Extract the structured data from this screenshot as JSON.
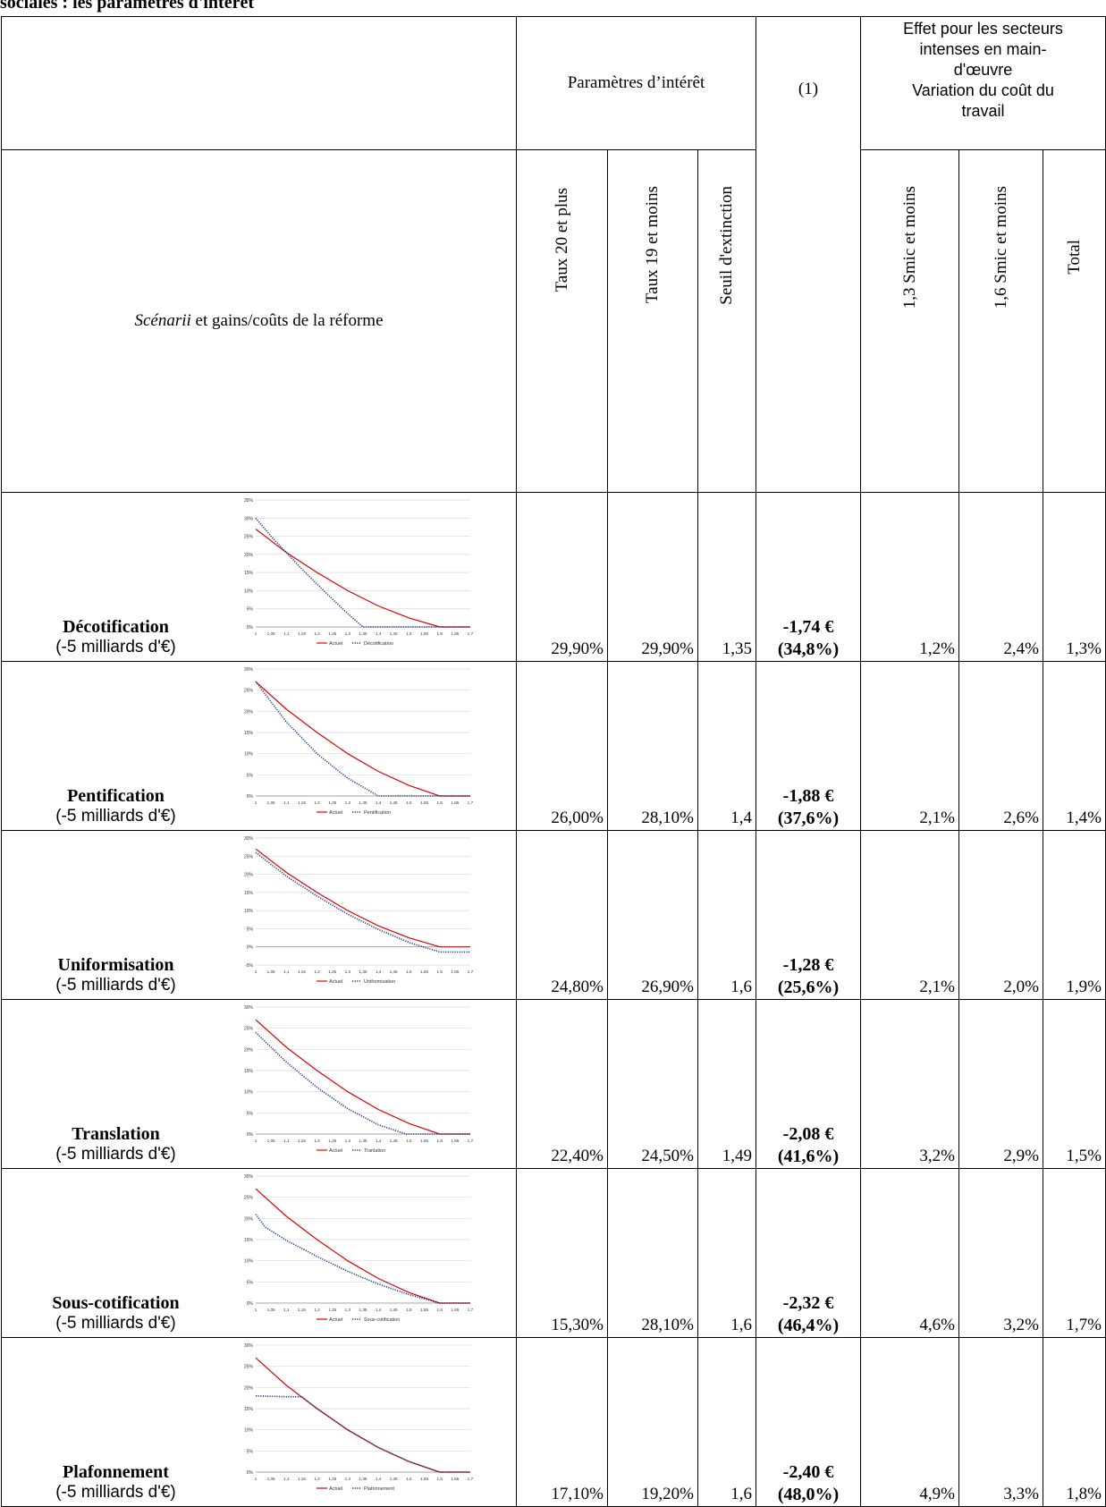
{
  "title": "sociales : les paramètres d'intérêt",
  "header": {
    "params_title": "Paramètres d’intérêt",
    "effect_title": [
      "Effet pour les secteurs",
      "intenses en main-",
      "d'œuvre",
      "Variation du coût du",
      "travail"
    ],
    "scenarii_italic": "Scénarii",
    "scenarii_rest": " et gains/coûts de la réforme",
    "col_taux20": "Taux 20 et plus",
    "col_taux19": "Taux 19 et moins",
    "col_seuil": "Seuil d'extinction",
    "col_note": "(1)",
    "col_13": "1,3 Smic et moins",
    "col_16": "1,6 Smic et moins",
    "col_total": "Total"
  },
  "x_ticks": [
    "1",
    "1,05",
    "1,1",
    "1,15",
    "1,2",
    "1,25",
    "1,3",
    "1,35",
    "1,4",
    "1,45",
    "1,5",
    "1,55",
    "1,6",
    "1,65",
    "1,7"
  ],
  "colors": {
    "actuel": "#e00000",
    "scenario": "#1f3a93",
    "grid": "#d9d9d9"
  },
  "scenarios": [
    {
      "name": "Décotification",
      "budget": "(-5 milliards d'€)",
      "taux20": "29,90%",
      "taux19": "29,90%",
      "seuil": "1,35",
      "gain": "-1,74 €",
      "gain_pct": "(34,8%)",
      "e13": "1,2%",
      "e16": "2,4%",
      "total": "1,3%",
      "chart_data": {
        "type": "line",
        "y_ticks": [
          "0%",
          "5%",
          "10%",
          "15%",
          "20%",
          "25%",
          "30%",
          "35%"
        ],
        "ylim": [
          0,
          0.35
        ],
        "legend": [
          "Actuel",
          "Décotification"
        ],
        "series": [
          {
            "name": "Actuel",
            "style": "solid",
            "x": [
              1,
              1.1,
              1.2,
              1.3,
              1.4,
              1.5,
              1.6,
              1.7
            ],
            "y": [
              0.27,
              0.205,
              0.15,
              0.1,
              0.058,
              0.025,
              0,
              0
            ]
          },
          {
            "name": "Décotification",
            "style": "dotted",
            "x": [
              1,
              1.05,
              1.1,
              1.15,
              1.2,
              1.25,
              1.3,
              1.35,
              1.7
            ],
            "y": [
              0.3,
              0.25,
              0.205,
              0.16,
              0.118,
              0.077,
              0.037,
              0,
              0
            ]
          }
        ]
      }
    },
    {
      "name": "Pentification",
      "budget": "(-5 milliards d'€)",
      "taux20": "26,00%",
      "taux19": "28,10%",
      "seuil": "1,4",
      "gain": "-1,88 €",
      "gain_pct": "(37,6%)",
      "e13": "2,1%",
      "e16": "2,6%",
      "total": "1,4%",
      "chart_data": {
        "type": "line",
        "y_ticks": [
          "0%",
          "5%",
          "10%",
          "15%",
          "20%",
          "25%",
          "30%"
        ],
        "ylim": [
          0,
          0.3
        ],
        "legend": [
          "Actuel",
          "Pentification"
        ],
        "series": [
          {
            "name": "Actuel",
            "style": "solid",
            "x": [
              1,
              1.1,
              1.2,
              1.3,
              1.4,
              1.5,
              1.6,
              1.7
            ],
            "y": [
              0.27,
              0.205,
              0.15,
              0.1,
              0.058,
              0.025,
              0,
              0
            ]
          },
          {
            "name": "Pentification",
            "style": "dotted",
            "x": [
              1,
              1.1,
              1.2,
              1.3,
              1.4,
              1.7
            ],
            "y": [
              0.27,
              0.175,
              0.1,
              0.042,
              0,
              0
            ]
          }
        ]
      }
    },
    {
      "name": "Uniformisation",
      "budget": "(-5 milliards d'€)",
      "taux20": "24,80%",
      "taux19": "26,90%",
      "seuil": "1,6",
      "gain": "-1,28 €",
      "gain_pct": "(25,6%)",
      "e13": "2,1%",
      "e16": "2,0%",
      "total": "1,9%",
      "chart_data": {
        "type": "line",
        "y_ticks": [
          "-5%",
          "0%",
          "5%",
          "10%",
          "15%",
          "20%",
          "25%",
          "30%"
        ],
        "ylim": [
          -0.05,
          0.3
        ],
        "legend": [
          "Actuel",
          "Uniformisation"
        ],
        "series": [
          {
            "name": "Actuel",
            "style": "solid",
            "x": [
              1,
              1.1,
              1.2,
              1.3,
              1.4,
              1.5,
              1.6,
              1.7
            ],
            "y": [
              0.27,
              0.205,
              0.15,
              0.1,
              0.058,
              0.025,
              0,
              0
            ]
          },
          {
            "name": "Uniformisation",
            "style": "dotted",
            "x": [
              1,
              1.1,
              1.2,
              1.3,
              1.4,
              1.5,
              1.6,
              1.7
            ],
            "y": [
              0.26,
              0.195,
              0.14,
              0.09,
              0.048,
              0.012,
              -0.014,
              -0.014
            ]
          }
        ]
      }
    },
    {
      "name": "Translation",
      "budget": "(-5 milliards d'€)",
      "taux20": "22,40%",
      "taux19": "24,50%",
      "seuil": "1,49",
      "gain": "-2,08 €",
      "gain_pct": "(41,6%)",
      "e13": "3,2%",
      "e16": "2,9%",
      "total": "1,5%",
      "chart_data": {
        "type": "line",
        "y_ticks": [
          "0%",
          "5%",
          "10%",
          "15%",
          "20%",
          "25%",
          "30%"
        ],
        "ylim": [
          0,
          0.3
        ],
        "legend": [
          "Actuel",
          "Tranlation"
        ],
        "series": [
          {
            "name": "Actuel",
            "style": "solid",
            "x": [
              1,
              1.1,
              1.2,
              1.3,
              1.4,
              1.5,
              1.6,
              1.7
            ],
            "y": [
              0.27,
              0.205,
              0.15,
              0.1,
              0.058,
              0.025,
              0,
              0
            ]
          },
          {
            "name": "Tranlation",
            "style": "dotted",
            "x": [
              1,
              1.1,
              1.2,
              1.3,
              1.4,
              1.49,
              1.7
            ],
            "y": [
              0.24,
              0.17,
              0.11,
              0.06,
              0.022,
              0,
              0
            ]
          }
        ]
      }
    },
    {
      "name": "Sous-cotification",
      "budget": "(-5 milliards d'€)",
      "taux20": "15,30%",
      "taux19": "28,10%",
      "seuil": "1,6",
      "gain": "-2,32 €",
      "gain_pct": "(46,4%)",
      "e13": "4,6%",
      "e16": "3,2%",
      "total": "1,7%",
      "chart_data": {
        "type": "line",
        "y_ticks": [
          "0%",
          "5%",
          "10%",
          "15%",
          "20%",
          "25%",
          "30%"
        ],
        "ylim": [
          0,
          0.3
        ],
        "legend": [
          "Actuel",
          "Sous-cotification"
        ],
        "series": [
          {
            "name": "Actuel",
            "style": "solid",
            "x": [
              1,
              1.1,
              1.2,
              1.3,
              1.4,
              1.5,
              1.6,
              1.7
            ],
            "y": [
              0.27,
              0.205,
              0.15,
              0.1,
              0.058,
              0.025,
              0,
              0
            ]
          },
          {
            "name": "Sous-cotification",
            "style": "dotted",
            "x": [
              1,
              1.03,
              1.1,
              1.2,
              1.3,
              1.4,
              1.5,
              1.6,
              1.7
            ],
            "y": [
              0.21,
              0.18,
              0.148,
              0.11,
              0.075,
              0.045,
              0.02,
              0,
              0
            ]
          }
        ]
      }
    },
    {
      "name": "Plafonnement",
      "budget": "(-5 milliards d'€)",
      "taux20": "17,10%",
      "taux19": "19,20%",
      "seuil": "1,6",
      "gain": "-2,40 €",
      "gain_pct": "(48,0%)",
      "e13": "4,9%",
      "e16": "3,3%",
      "total": "1,8%",
      "chart_data": {
        "type": "line",
        "y_ticks": [
          "0%",
          "5%",
          "10%",
          "15%",
          "20%",
          "25%",
          "30%"
        ],
        "ylim": [
          0,
          0.3
        ],
        "legend": [
          "Actuel",
          "Plafonnement"
        ],
        "series": [
          {
            "name": "Actuel",
            "style": "solid",
            "x": [
              1,
              1.1,
              1.2,
              1.3,
              1.4,
              1.5,
              1.6,
              1.7
            ],
            "y": [
              0.27,
              0.205,
              0.15,
              0.1,
              0.058,
              0.025,
              0,
              0
            ]
          },
          {
            "name": "Plafonnement",
            "style": "dotted",
            "x": [
              1,
              1.1,
              1.15,
              1.2,
              1.3,
              1.4,
              1.5,
              1.6,
              1.7
            ],
            "y": [
              0.18,
              0.178,
              0.178,
              0.15,
              0.1,
              0.058,
              0.025,
              0,
              0
            ]
          }
        ]
      }
    }
  ]
}
